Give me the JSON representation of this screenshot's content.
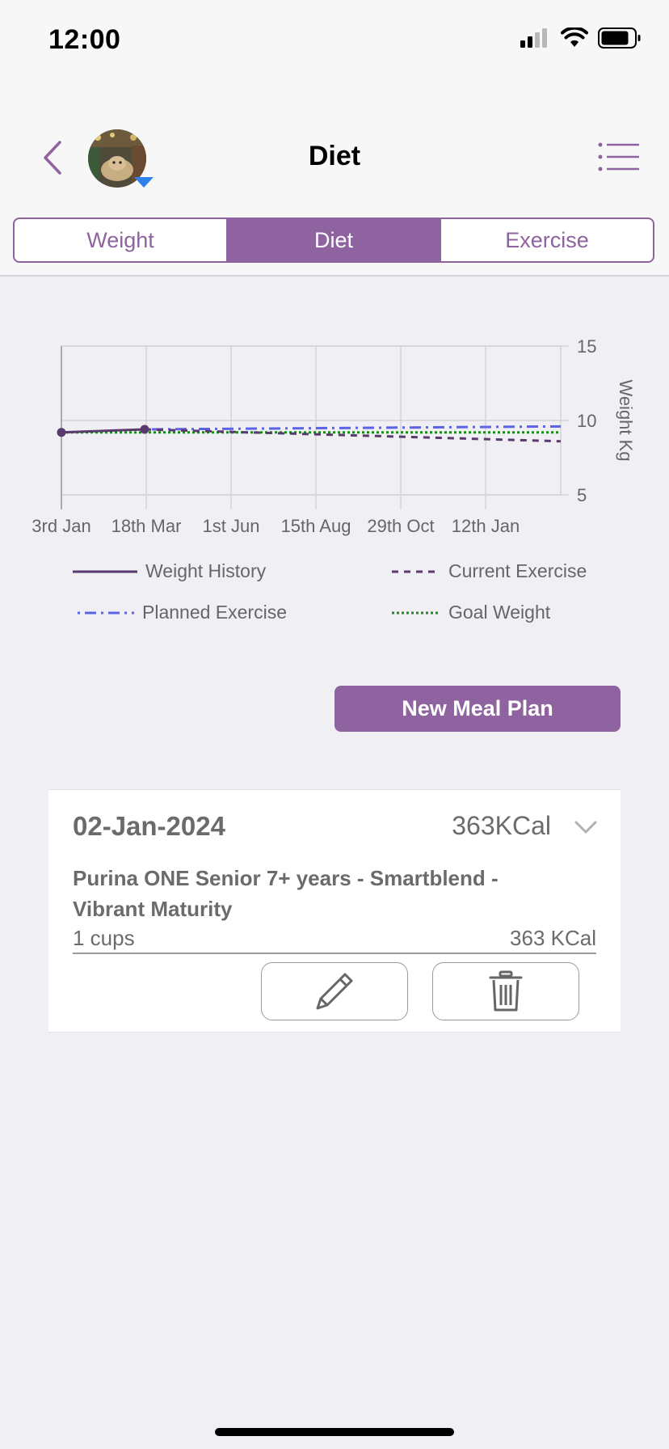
{
  "status_bar": {
    "time": "12:00"
  },
  "header": {
    "title": "Diet"
  },
  "tabs": [
    {
      "label": "Weight",
      "active": false
    },
    {
      "label": "Diet",
      "active": true
    },
    {
      "label": "Exercise",
      "active": false
    }
  ],
  "colors": {
    "accent": "#8f62a0",
    "history": "#5a3a6e",
    "planned": "#5b63e8",
    "goal": "#1b8a1b"
  },
  "chart_data": {
    "type": "line",
    "ylabel": "Weight Kg",
    "xlabel": "",
    "y_axis_position": "right",
    "ylim": [
      5,
      15
    ],
    "y_ticks": [
      15,
      10,
      5
    ],
    "x_ticks": [
      "3rd Jan",
      "18th Mar",
      "1st Jun",
      "15th Aug",
      "29th Oct",
      "12th Jan"
    ],
    "x_range": [
      "2024-01-03",
      "2025-03-28"
    ],
    "grid": true,
    "legend_position": "bottom",
    "series": [
      {
        "name": "Weight History",
        "style": "solid",
        "points": [
          [
            "2024-01-03",
            9.2
          ],
          [
            "2024-03-18",
            9.4
          ]
        ]
      },
      {
        "name": "Current Exercise",
        "style": "dashed",
        "points": [
          [
            "2024-03-18",
            9.4
          ],
          [
            "2025-03-28",
            8.6
          ]
        ]
      },
      {
        "name": "Planned Exercise",
        "style": "dash-dot",
        "points": [
          [
            "2024-03-18",
            9.4
          ],
          [
            "2025-03-28",
            9.6
          ]
        ]
      },
      {
        "name": "Goal Weight",
        "style": "dotted",
        "points": [
          [
            "2024-01-03",
            9.2
          ],
          [
            "2025-03-28",
            9.2
          ]
        ]
      }
    ]
  },
  "legend": [
    {
      "label": "Weight History"
    },
    {
      "label": "Current Exercise"
    },
    {
      "label": "Planned Exercise"
    },
    {
      "label": "Goal Weight"
    }
  ],
  "actions": {
    "new_meal_plan": "New Meal Plan"
  },
  "meal_card": {
    "date": "02-Jan-2024",
    "total_kcal": "363KCal",
    "food_name": "Purina ONE Senior 7+ years - Smartblend - Vibrant Maturity",
    "quantity": "1 cups",
    "item_kcal": "363 KCal"
  }
}
